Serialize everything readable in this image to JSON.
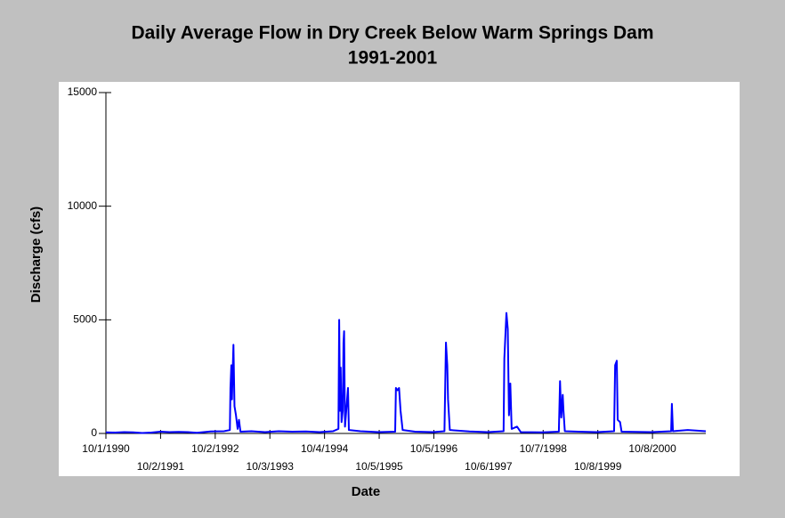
{
  "chart_data": {
    "type": "line",
    "title": "Daily Average Flow in Dry Creek Below Warm Springs Dam",
    "subtitle": "1991-2001",
    "x_label": "Date",
    "y_label": "Discharge (cfs)",
    "xlim": [
      "10/1/1990",
      "9/30/2001"
    ],
    "xticks": [
      "10/1/1990",
      "10/2/1991",
      "10/2/1992",
      "10/3/1993",
      "10/4/1994",
      "10/5/1995",
      "10/5/1996",
      "10/6/1997",
      "10/7/1998",
      "10/8/1999",
      "10/8/2000"
    ],
    "ylim": [
      0,
      15000
    ],
    "yticks": [
      0,
      5000,
      10000,
      15000
    ],
    "series": [
      {
        "name": "Discharge",
        "color": "#0000ff",
        "x": [
          "10/1/1990",
          "12/1/1990",
          "2/1/1991",
          "4/1/1991",
          "6/1/1991",
          "8/1/1991",
          "10/1/1991",
          "12/1/1991",
          "2/1/1992",
          "4/1/1992",
          "6/1/1992",
          "9/1/1992",
          "12/1/1992",
          "1/8/1993",
          "1/12/1993",
          "1/18/1993",
          "1/22/1993",
          "1/26/1993",
          "2/1/1993",
          "2/8/1993",
          "2/18/1993",
          "3/1/1993",
          "3/10/1993",
          "3/20/1993",
          "6/1/1993",
          "9/1/1993",
          "12/1/1993",
          "3/1/1994",
          "6/1/1994",
          "9/1/1994",
          "12/1/1994",
          "1/5/1995",
          "1/10/1995",
          "1/16/1995",
          "1/20/1995",
          "1/26/1995",
          "2/3/1995",
          "2/8/1995",
          "2/12/1995",
          "2/18/1995",
          "3/10/1995",
          "3/16/1995",
          "6/1/1995",
          "10/1/1995",
          "1/20/1996",
          "1/25/1996",
          "2/5/1996",
          "2/15/1996",
          "2/25/1996",
          "3/10/1996",
          "6/1/1996",
          "10/1/1996",
          "12/15/1996",
          "12/25/1996",
          "1/3/1997",
          "1/8/1997",
          "1/20/1997",
          "6/1/1997",
          "10/1/1997",
          "1/15/1998",
          "1/20/1998",
          "2/3/1998",
          "2/12/1998",
          "2/20/1998",
          "3/1/1998",
          "3/10/1998",
          "4/15/1998",
          "5/10/1998",
          "10/1/1998",
          "1/20/1999",
          "1/28/1999",
          "2/5/1999",
          "2/15/1999",
          "2/20/1999",
          "3/1/1999",
          "6/1/1999",
          "10/1/1999",
          "1/25/2000",
          "2/1/2000",
          "2/12/2000",
          "2/18/2000",
          "3/5/2000",
          "3/15/2000",
          "10/1/2000",
          "2/10/2001",
          "2/15/2001",
          "2/22/2001",
          "6/1/2001",
          "9/30/2001"
        ],
        "values": [
          50,
          40,
          60,
          50,
          20,
          40,
          80,
          60,
          70,
          60,
          30,
          90,
          100,
          150,
          2000,
          3000,
          1500,
          2500,
          3900,
          1200,
          800,
          200,
          600,
          80,
          100,
          60,
          100,
          80,
          90,
          60,
          100,
          200,
          5000,
          1000,
          2900,
          500,
          1000,
          4000,
          4500,
          300,
          2000,
          150,
          100,
          60,
          80,
          2000,
          1900,
          2000,
          1000,
          150,
          80,
          60,
          100,
          4000,
          3000,
          1500,
          150,
          90,
          60,
          100,
          3300,
          5300,
          4600,
          800,
          2200,
          200,
          300,
          60,
          50,
          80,
          2300,
          700,
          1700,
          1000,
          100,
          80,
          60,
          100,
          3000,
          3200,
          600,
          500,
          80,
          60,
          100,
          1300,
          100,
          150,
          100
        ]
      }
    ]
  }
}
